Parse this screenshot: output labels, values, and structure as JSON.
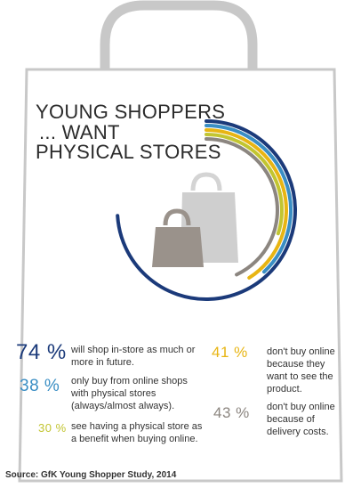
{
  "title": {
    "line1": "YOUNG SHOPPERS",
    "line2": "... WANT",
    "line3": "PHYSICAL STORES"
  },
  "chart_data": {
    "type": "radial-bar",
    "series": [
      {
        "value": 74,
        "label": "74 %",
        "text": "will shop in-store as much or more in future.",
        "color": "#1b3a7a"
      },
      {
        "value": 38,
        "label": "38 %",
        "text": "only buy from online shops with physical stores (always/almost always).",
        "color": "#3a8ec4"
      },
      {
        "value": 30,
        "label": "30 %",
        "text": "see having a physical store as a benefit when buying online.",
        "color": "#c2c531"
      },
      {
        "value": 41,
        "label": "41 %",
        "text": "don't buy online because they want to see the product.",
        "color": "#e8b513"
      },
      {
        "value": 43,
        "label": "43 %",
        "text": "don't buy online because of delivery costs.",
        "color": "#8c8680"
      }
    ]
  },
  "source": "Source: GfK Young Shopper Study, 2014",
  "colors": {
    "bag_outline": "#c8c8c8",
    "bag_front": "#9a928b",
    "bag_back": "#cfcfcf"
  },
  "icons": {
    "bags": "shopping-bags-icon"
  }
}
